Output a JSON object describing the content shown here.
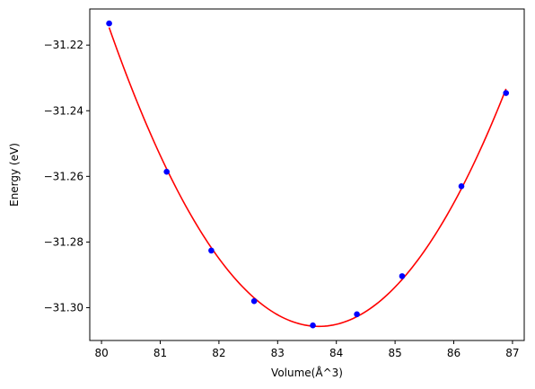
{
  "chart_data": {
    "type": "scatter",
    "title": "",
    "xlabel": "Volume(Å^3)",
    "ylabel": "Energy (eV)",
    "xlim": [
      79.8,
      87.2
    ],
    "ylim": [
      -31.31,
      -31.209
    ],
    "xticks": [
      80,
      81,
      82,
      83,
      84,
      85,
      86,
      87
    ],
    "yticks": [
      -31.22,
      -31.24,
      -31.26,
      -31.28,
      -31.3
    ],
    "xtick_labels": [
      "80",
      "81",
      "82",
      "83",
      "84",
      "85",
      "86",
      "87"
    ],
    "ytick_labels": [
      "−31.22",
      "−31.24",
      "−31.26",
      "−31.28",
      "−31.30"
    ],
    "grid": false,
    "series": [
      {
        "kind": "scatter",
        "color": "#0000ff",
        "x": [
          80.13,
          81.11,
          81.87,
          82.6,
          83.6,
          84.35,
          85.12,
          86.13,
          86.89
        ],
        "y": [
          -31.2134,
          -31.2586,
          -31.2826,
          -31.298,
          -31.3054,
          -31.302,
          -31.2904,
          -31.263,
          -31.2346
        ]
      },
      {
        "kind": "fit-curve",
        "color": "#ff0000",
        "x_range": [
          80.13,
          86.89
        ],
        "fit_of_series": 0
      }
    ]
  }
}
